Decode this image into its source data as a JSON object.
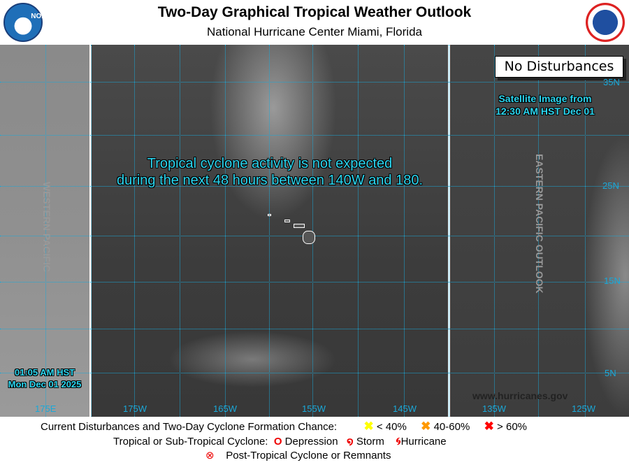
{
  "header": {
    "title": "Two-Day Graphical Tropical Weather Outlook",
    "subtitle": "National Hurricane Center  Miami, Florida",
    "noaa_logo": "NOAA",
    "nws_logo": "National Weather Service"
  },
  "map": {
    "message_line1": "Tropical cyclone activity is not expected",
    "message_line2": "during the next 48 hours between 140W and 180.",
    "status_box": "No Disturbances",
    "satellite_line1": "Satellite Image from",
    "satellite_line2": "12:30 AM HST Dec 01",
    "issue_time_line1": "01:05 AM HST",
    "issue_time_line2": "Mon Dec 01 2025",
    "western_label": "WESTERN PACIFIC",
    "eastern_label": "EASTERN PACIFIC OUTLOOK",
    "website": "www.hurricanes.gov",
    "lon_labels": [
      "175E",
      "175W",
      "165W",
      "155W",
      "145W",
      "135W",
      "125W"
    ],
    "lat_labels": [
      "35N",
      "25N",
      "15N",
      "5N"
    ],
    "grid_color": "#1aa8d8"
  },
  "legend": {
    "row1_label": "Current Disturbances and Two-Day Cyclone Formation Chance:",
    "low": "< 40%",
    "medium": "40-60%",
    "high": "> 60%",
    "low_color": "#ffff00",
    "medium_color": "#ff9900",
    "high_color": "#ff0000",
    "row2_label": "Tropical or Sub-Tropical Cyclone:",
    "depression": "Depression",
    "storm": "Storm",
    "hurricane": "Hurricane",
    "post_tropical": "Post-Tropical Cyclone or Remnants"
  }
}
